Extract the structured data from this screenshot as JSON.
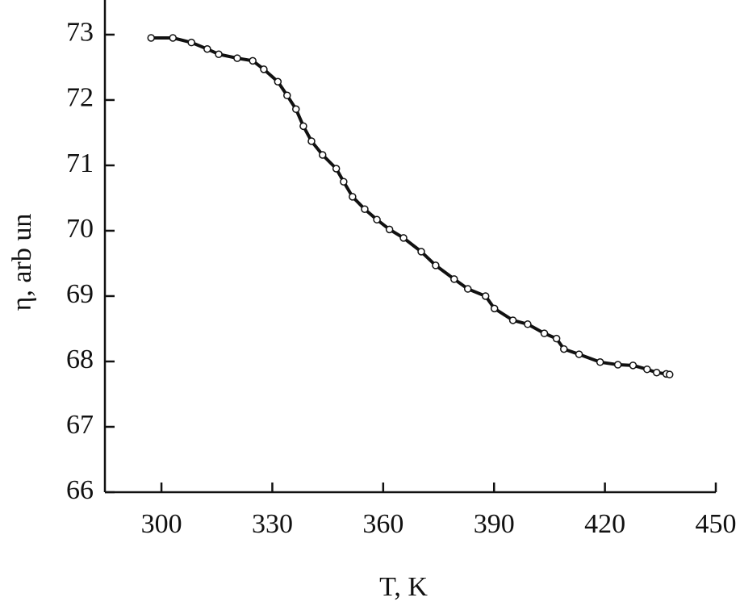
{
  "chart_data": {
    "type": "line",
    "xlabel": "T, K",
    "ylabel": "η, arb un",
    "x": [
      297.2,
      303.1,
      308.1,
      312.4,
      315.5,
      320.5,
      324.7,
      327.7,
      331.5,
      334.0,
      336.4,
      338.4,
      340.6,
      343.6,
      347.3,
      349.3,
      351.7,
      355.0,
      358.3,
      361.7,
      365.5,
      370.3,
      374.2,
      379.2,
      382.9,
      387.7,
      390.1,
      395.1,
      399.1,
      403.6,
      406.9,
      408.9,
      413.0,
      418.7,
      423.5,
      427.6,
      431.4,
      434.0,
      436.6,
      437.5
    ],
    "series": [
      {
        "color": "#111111",
        "values": [
          72.95,
          72.95,
          72.88,
          72.78,
          72.7,
          72.64,
          72.6,
          72.47,
          72.28,
          72.07,
          71.86,
          71.6,
          71.37,
          71.16,
          70.95,
          70.75,
          70.52,
          70.33,
          70.17,
          70.02,
          69.89,
          69.68,
          69.47,
          69.26,
          69.11,
          69.0,
          68.81,
          68.63,
          68.57,
          68.43,
          68.35,
          68.19,
          68.11,
          67.99,
          67.95,
          67.94,
          67.88,
          67.83,
          67.81,
          67.8
        ]
      }
    ],
    "xlim": [
      284.7,
      450
    ],
    "xticks": [
      300,
      330,
      360,
      390,
      420,
      450
    ],
    "ylim": [
      66,
      73.53
    ],
    "yticks": [
      66,
      67,
      68,
      69,
      70,
      71,
      72,
      73
    ],
    "grid": false
  }
}
